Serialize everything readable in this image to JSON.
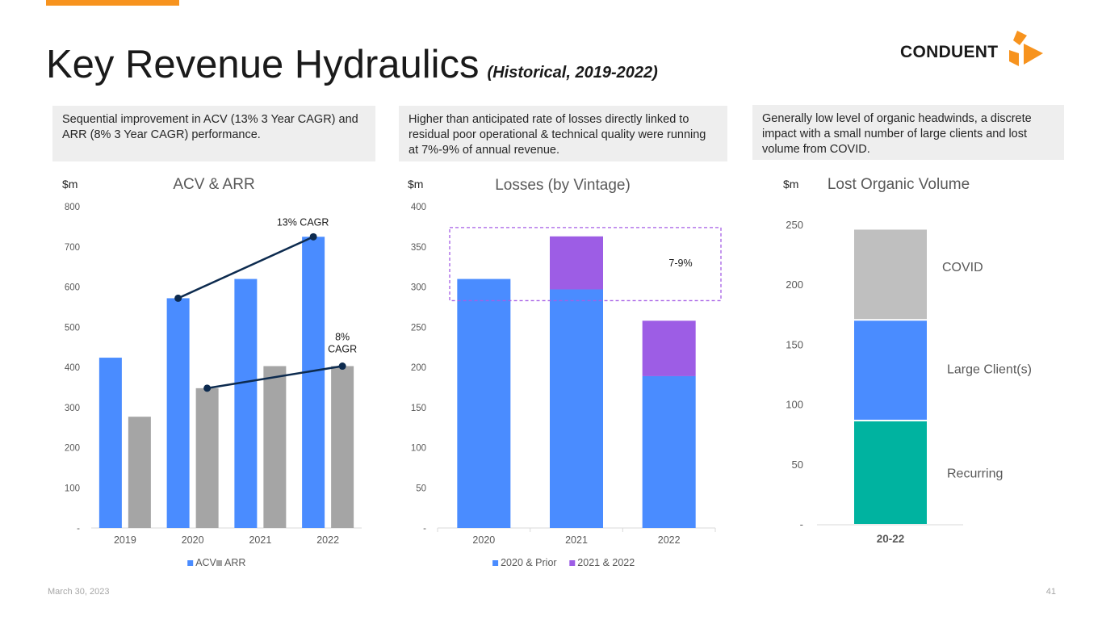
{
  "page": {
    "title": "Key Revenue Hydraulics",
    "subtitle": "(Historical, 2019-2022)",
    "logo_text": "CONDUENT",
    "date": "March 30, 2023",
    "page_number": "41"
  },
  "callouts": [
    "Sequential improvement in ACV (13% 3 Year CAGR) and ARR (8% 3 Year CAGR) performance.",
    "Higher than anticipated rate of losses directly linked to residual poor operational & technical quality were running at 7%-9% of annual revenue.",
    "Generally low level of organic headwinds, a discrete impact with a small number of large clients and lost volume from COVID."
  ],
  "colors": {
    "blue": "#4a8cff",
    "gray": "#a5a5a5",
    "purple": "#9d5de5",
    "teal": "#00b3a0",
    "light_gray": "#bfbfbf",
    "navy": "#0d2b4f",
    "dash": "#a55ee5",
    "brand_orange": "#f7931e"
  },
  "chart_data": [
    {
      "type": "bar",
      "title": "ACV & ARR",
      "unit_label": "$m",
      "categories": [
        "2019",
        "2020",
        "2021",
        "2022"
      ],
      "series": [
        {
          "name": "ACV",
          "values": [
            424,
            572,
            620,
            725
          ]
        },
        {
          "name": "ARR",
          "values": [
            277,
            348,
            403,
            403
          ]
        }
      ],
      "ylim": [
        0,
        800
      ],
      "yticks": [
        0,
        100,
        200,
        300,
        400,
        500,
        600,
        700,
        800
      ],
      "ytick_labels": [
        "-",
        "100",
        "200",
        "300",
        "400",
        "500",
        "600",
        "700",
        "800"
      ],
      "annotations": [
        {
          "text": "13% CAGR",
          "series": "ACV",
          "from": "2020",
          "to": "2022"
        },
        {
          "text": "8% CAGR",
          "series": "ARR",
          "from": "2020",
          "to": "2022"
        }
      ],
      "legend": "bottom",
      "grid": false
    },
    {
      "type": "bar",
      "stacked": true,
      "title": "Losses (by Vintage)",
      "unit_label": "$m",
      "categories": [
        "2020",
        "2021",
        "2022"
      ],
      "series": [
        {
          "name": "2020 & Prior",
          "values": [
            310,
            297,
            189
          ]
        },
        {
          "name": "2021 & 2022",
          "values": [
            0,
            66,
            69
          ]
        }
      ],
      "ylim": [
        0,
        400
      ],
      "yticks": [
        0,
        50,
        100,
        150,
        200,
        250,
        300,
        350,
        400
      ],
      "ytick_labels": [
        "-",
        "50",
        "100",
        "150",
        "200",
        "250",
        "300",
        "350",
        "400"
      ],
      "annotations": [
        {
          "text": "7-9%",
          "range": [
            283,
            374
          ]
        }
      ],
      "legend": "bottom",
      "grid": false
    },
    {
      "type": "bar",
      "stacked": true,
      "title": "Lost Organic Volume",
      "unit_label": "$m",
      "categories": [
        "20-22"
      ],
      "series": [
        {
          "name": "Recurring",
          "values": [
            87
          ]
        },
        {
          "name": "Large Client(s)",
          "values": [
            84
          ]
        },
        {
          "name": "COVID",
          "values": [
            76
          ]
        }
      ],
      "ylim": [
        0,
        250
      ],
      "yticks": [
        0,
        50,
        100,
        150,
        200,
        250
      ],
      "ytick_labels": [
        "-",
        "50",
        "100",
        "150",
        "200",
        "250"
      ],
      "legend": "none",
      "grid": false
    }
  ]
}
